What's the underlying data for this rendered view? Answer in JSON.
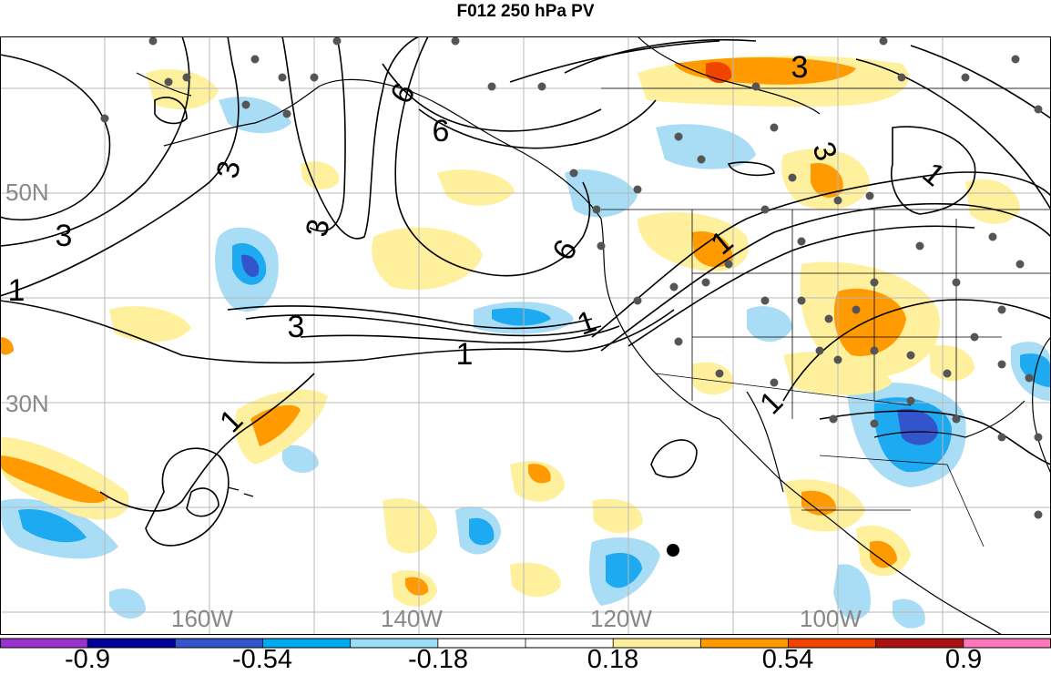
{
  "title": "F012 250 hPa PV",
  "map": {
    "lat_labels": [
      "50N",
      "30N"
    ],
    "lon_labels": [
      "160W",
      "140W",
      "120W",
      "100W"
    ]
  },
  "contour_labels": [
    "3",
    "3",
    "3",
    "3",
    "3",
    "3",
    "6",
    "6",
    "6",
    "1",
    "1",
    "1",
    "1",
    "1",
    "1",
    "1"
  ],
  "colorbar": {
    "colors": [
      "#9933cc",
      "#000099",
      "#3355cc",
      "#00aaee",
      "#99ddf7",
      "#ffffff",
      "#ffffff",
      "#ffee99",
      "#ff9900",
      "#ee4400",
      "#aa1111",
      "#ff77bb"
    ],
    "tick_labels": [
      "-0.9",
      "-0.54",
      "-0.18",
      "0.18",
      "0.54",
      "0.9"
    ]
  }
}
